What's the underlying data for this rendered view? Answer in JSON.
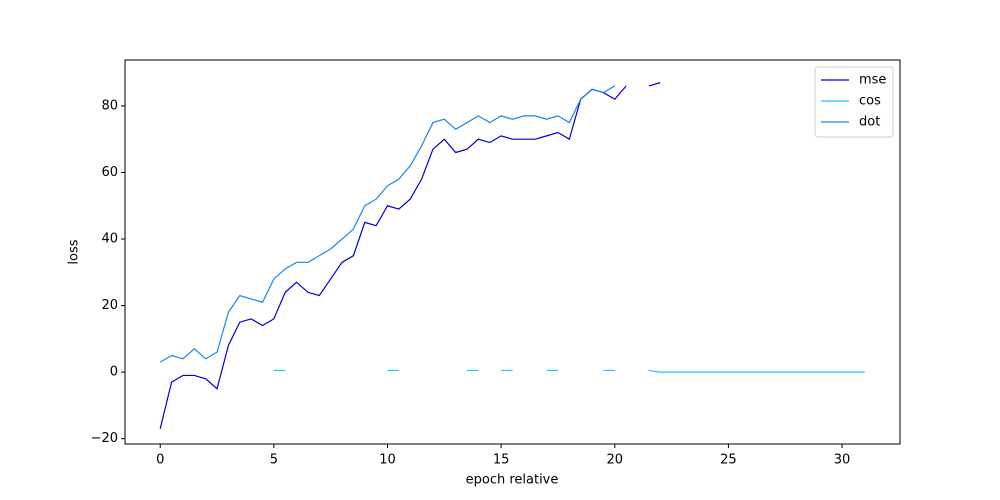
{
  "chart_data": {
    "type": "line",
    "x_label": "epoch relative",
    "y_label": "loss",
    "x": [
      0,
      0.5,
      1,
      1.5,
      2,
      2.5,
      3,
      3.5,
      4,
      4.5,
      5,
      5.5,
      6,
      6.5,
      7,
      7.5,
      8,
      8.5,
      9,
      9.5,
      10,
      10.5,
      11,
      11.5,
      12,
      12.5,
      13,
      13.5,
      14,
      14.5,
      15,
      15.5,
      16,
      16.5,
      17,
      17.5,
      18,
      18.5,
      19,
      19.5,
      20,
      20.5,
      21,
      21.5,
      22,
      22.5,
      23,
      23.5,
      24,
      24.5,
      25,
      25.5,
      26,
      26.5,
      27,
      27.5,
      28,
      28.5,
      29,
      29.5,
      30,
      30.5,
      31
    ],
    "series": [
      {
        "name": "mse",
        "color": "#0000dd",
        "values": [
          -17,
          -3,
          -1,
          -1,
          -2,
          -5,
          8,
          15,
          16,
          14,
          16,
          24,
          27,
          24,
          23,
          28,
          33,
          35,
          45,
          44,
          50,
          49,
          52,
          58,
          67,
          70,
          66,
          67,
          70,
          69,
          71,
          70,
          70,
          70,
          71,
          72,
          70,
          82,
          85,
          84,
          82,
          86,
          null,
          86,
          87,
          null,
          null,
          null,
          null,
          null,
          null,
          null,
          null,
          null,
          null,
          null,
          null,
          null,
          null,
          null,
          null,
          null,
          null
        ]
      },
      {
        "name": "cos",
        "color": "#22c4f5",
        "values": [
          null,
          null,
          null,
          null,
          null,
          null,
          null,
          null,
          null,
          null,
          0.5,
          0.5,
          null,
          null,
          null,
          null,
          null,
          null,
          null,
          null,
          0.5,
          0.5,
          null,
          null,
          null,
          null,
          null,
          0.5,
          0.5,
          null,
          0.5,
          0.5,
          null,
          null,
          0.5,
          0.5,
          null,
          null,
          null,
          0.5,
          0.5,
          null,
          null,
          0.5,
          0,
          0,
          0,
          0,
          0,
          0,
          0,
          0,
          0,
          0,
          0,
          0,
          0,
          0,
          0,
          0,
          0,
          0,
          0
        ]
      },
      {
        "name": "dot",
        "color": "#1a86e8",
        "values": [
          3,
          5,
          4,
          7,
          4,
          6,
          18,
          23,
          22,
          21,
          28,
          31,
          33,
          33,
          35,
          37,
          40,
          43,
          50,
          52,
          56,
          58,
          62,
          68,
          75,
          76,
          73,
          75,
          77,
          75,
          77,
          76,
          77,
          77,
          76,
          77,
          75,
          82,
          85,
          84,
          86,
          null,
          null,
          null,
          null,
          null,
          null,
          null,
          null,
          null,
          null,
          null,
          null,
          null,
          null,
          null,
          null,
          null,
          null,
          null,
          null,
          null,
          null
        ]
      }
    ],
    "xlim": [
      -1.55,
      32.55
    ],
    "ylim": [
      -21.6,
      93.8
    ],
    "xticks": [
      0,
      5,
      10,
      15,
      20,
      25,
      30
    ],
    "yticks": [
      {
        "value": -20,
        "label": "−20"
      },
      0,
      20,
      40,
      60,
      80
    ],
    "legend": "upper right"
  }
}
